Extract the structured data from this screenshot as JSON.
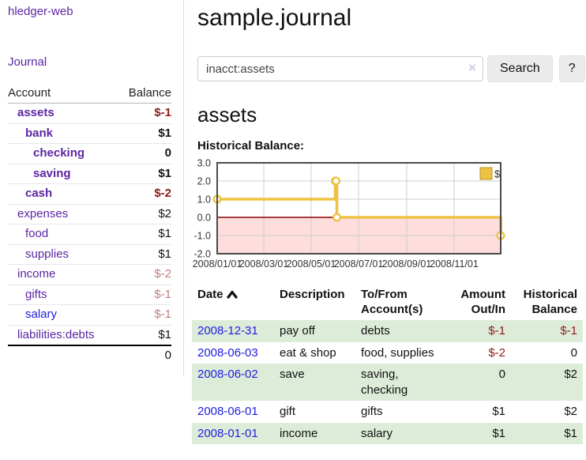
{
  "app": {
    "title": "hledger-web",
    "nav": {
      "journal_label": "Journal"
    }
  },
  "sidebar": {
    "table": {
      "headers": {
        "account": "Account",
        "balance": "Balance"
      },
      "rows": [
        {
          "name": "assets",
          "depth": 1,
          "bold": true,
          "link_color": "purple",
          "balance": "$-1",
          "balance_style": "neg-strong"
        },
        {
          "name": "bank",
          "depth": 2,
          "bold": true,
          "link_color": "purple",
          "balance": "$1",
          "balance_style": "normal"
        },
        {
          "name": "checking",
          "depth": 3,
          "bold": true,
          "link_color": "purple",
          "balance": "0",
          "balance_style": "normal"
        },
        {
          "name": "saving",
          "depth": 3,
          "bold": true,
          "link_color": "purple",
          "balance": "$1",
          "balance_style": "normal"
        },
        {
          "name": "cash",
          "depth": 2,
          "bold": true,
          "link_color": "purple",
          "balance": "$-2",
          "balance_style": "neg-strong"
        },
        {
          "name": "expenses",
          "depth": 1,
          "bold": false,
          "link_color": "purple",
          "balance": "$2",
          "balance_style": "normal"
        },
        {
          "name": "food",
          "depth": 2,
          "bold": false,
          "link_color": "purple",
          "balance": "$1",
          "balance_style": "normal"
        },
        {
          "name": "supplies",
          "depth": 2,
          "bold": false,
          "link_color": "purple",
          "balance": "$1",
          "balance_style": "normal"
        },
        {
          "name": "income",
          "depth": 1,
          "bold": false,
          "link_color": "purple",
          "balance": "$-2",
          "balance_style": "neg-soft"
        },
        {
          "name": "gifts",
          "depth": 2,
          "bold": false,
          "link_color": "purple",
          "balance": "$-1",
          "balance_style": "neg-soft"
        },
        {
          "name": "salary",
          "depth": 2,
          "bold": false,
          "link_color": "blue",
          "balance": "$-1",
          "balance_style": "neg-soft"
        },
        {
          "name": "liabilities:debts",
          "depth": 1,
          "bold": false,
          "link_color": "purple",
          "balance": "$1",
          "balance_style": "normal"
        }
      ],
      "total": "0"
    }
  },
  "header": {
    "title": "sample.journal"
  },
  "search": {
    "value": "inacct:assets",
    "clear_icon": "×",
    "button_label": "Search",
    "help_label": "?"
  },
  "account_page": {
    "title": "assets",
    "chart_label": "Historical Balance:"
  },
  "chart_data": {
    "type": "line",
    "step": true,
    "title": "Historical Balance",
    "series": [
      {
        "name": "$",
        "points": [
          [
            "2008-01-01",
            1.0
          ],
          [
            "2008-06-01",
            2.0
          ],
          [
            "2008-06-02",
            2.0
          ],
          [
            "2008-06-03",
            0.0
          ],
          [
            "2008-12-31",
            -1.0
          ]
        ]
      }
    ],
    "x_range": [
      "2008-01-01",
      "2008-12-31"
    ],
    "x_ticks": [
      "2008/01/01",
      "2008/03/01",
      "2008/05/01",
      "2008/07/01",
      "2008/09/01",
      "2008/11/01"
    ],
    "y_ticks": [
      3.0,
      2.0,
      1.0,
      0.0,
      -1.0,
      -2.0
    ],
    "ylim": [
      -2.0,
      3.0
    ],
    "grid": true,
    "legend_position": "top-right",
    "line_color": "#edc240",
    "marker_fill": "#ffffff",
    "zero_line_color": "#8b0000",
    "negative_zone_color": "#fedddd"
  },
  "register": {
    "headers": {
      "date": "Date",
      "description": "Description",
      "accounts": "To/From Account(s)",
      "amount": "Amount Out/In",
      "balance": "Historical Balance"
    },
    "rows": [
      {
        "date": "2008-12-31",
        "description": "pay off",
        "accounts": "debts",
        "amount": "$-1",
        "amount_negative": true,
        "balance": "$-1",
        "balance_negative": true
      },
      {
        "date": "2008-06-03",
        "description": "eat & shop",
        "accounts": "food, supplies",
        "amount": "$-2",
        "amount_negative": true,
        "balance": "0",
        "balance_negative": false
      },
      {
        "date": "2008-06-02",
        "description": "save",
        "accounts": "saving, checking",
        "amount": "0",
        "amount_negative": false,
        "balance": "$2",
        "balance_negative": false
      },
      {
        "date": "2008-06-01",
        "description": "gift",
        "accounts": "gifts",
        "amount": "$1",
        "amount_negative": false,
        "balance": "$2",
        "balance_negative": false
      },
      {
        "date": "2008-01-01",
        "description": "income",
        "accounts": "salary",
        "amount": "$1",
        "amount_negative": false,
        "balance": "$1",
        "balance_negative": false
      }
    ]
  }
}
